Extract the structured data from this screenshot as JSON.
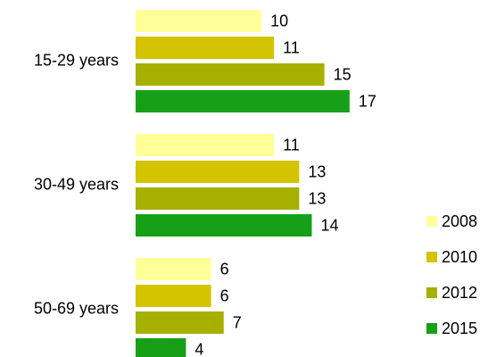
{
  "chart_data": {
    "type": "bar",
    "orientation": "horizontal",
    "categories": [
      "15-29 years",
      "30-49 years",
      "50-69 years"
    ],
    "series": [
      {
        "name": "2008",
        "color": "#ffff99",
        "values": [
          10,
          11,
          6
        ]
      },
      {
        "name": "2010",
        "color": "#d4c400",
        "values": [
          11,
          13,
          6
        ]
      },
      {
        "name": "2012",
        "color": "#a6b000",
        "values": [
          15,
          13,
          7
        ]
      },
      {
        "name": "2015",
        "color": "#17a017",
        "values": [
          17,
          14,
          4
        ]
      }
    ],
    "xlim": [
      0,
      28
    ],
    "legend": "right"
  }
}
